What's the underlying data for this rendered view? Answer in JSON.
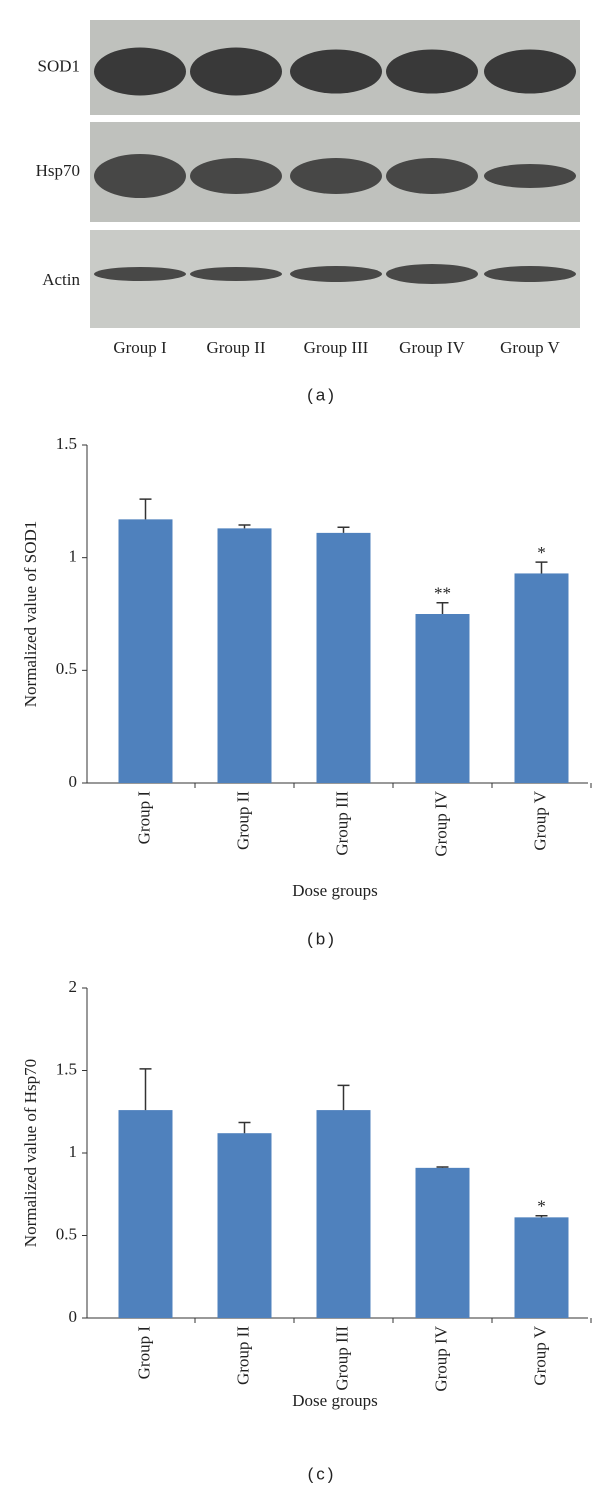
{
  "blot": {
    "rows": [
      "SOD1",
      "Hsp70",
      "Actin"
    ],
    "groups": [
      "Group I",
      "Group II",
      "Group III",
      "Group IV",
      "Group V"
    ],
    "caption": "(a)"
  },
  "chart_data": [
    {
      "type": "bar",
      "caption": "(b)",
      "x_label": "Dose groups",
      "y_label": "Normalized value of SOD1",
      "categories": [
        "Group I",
        "Group II",
        "Group III",
        "Group IV",
        "Group V"
      ],
      "values": [
        1.17,
        1.13,
        1.11,
        0.75,
        0.93
      ],
      "errors": [
        0.09,
        0.015,
        0.025,
        0.05,
        0.05
      ],
      "significance": [
        null,
        null,
        null,
        "**",
        "*"
      ],
      "color": "#4f81bd",
      "ylim": [
        0,
        1.5
      ],
      "yticks": [
        0,
        0.5,
        1,
        1.5
      ]
    },
    {
      "type": "bar",
      "caption": "(c)",
      "x_label": "Dose groups",
      "y_label": "Normalized value of Hsp70",
      "categories": [
        "Group I",
        "Group II",
        "Group III",
        "Group IV",
        "Group V"
      ],
      "values": [
        1.26,
        1.12,
        1.26,
        0.91,
        0.61
      ],
      "errors": [
        0.25,
        0.065,
        0.15,
        0.005,
        0.01
      ],
      "significance": [
        null,
        null,
        null,
        null,
        "*"
      ],
      "color": "#4f81bd",
      "ylim": [
        0,
        2
      ],
      "yticks": [
        0,
        0.5,
        1,
        1.5,
        2
      ]
    }
  ]
}
